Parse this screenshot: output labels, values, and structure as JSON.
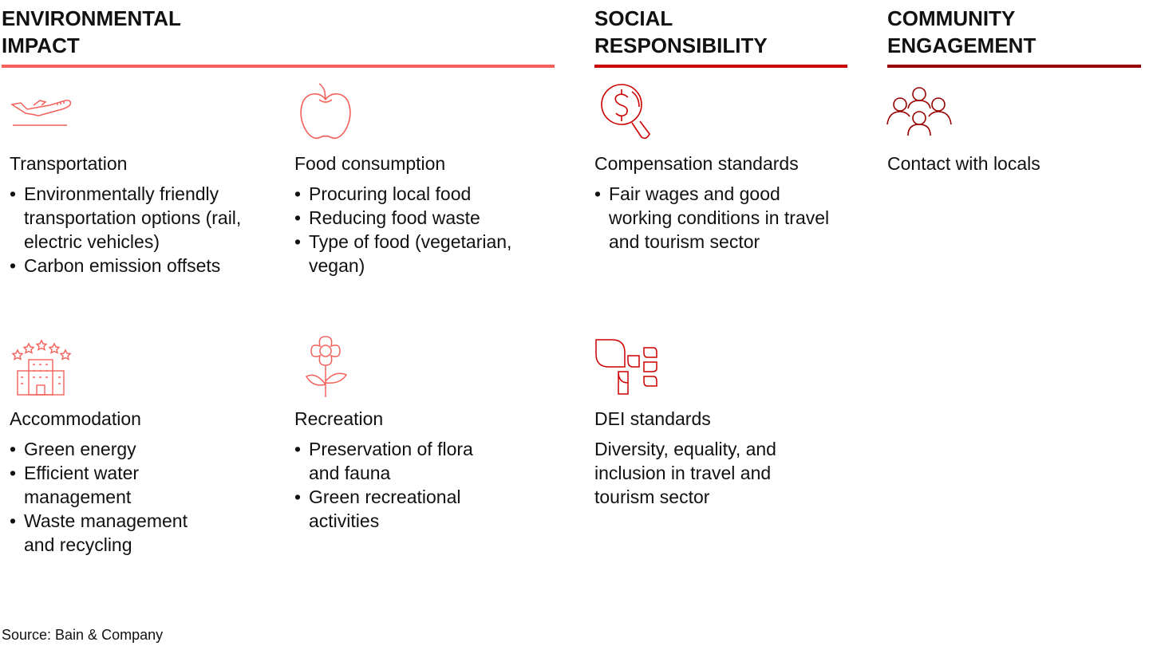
{
  "colors": {
    "environmental": "#F4605A",
    "social": "#CC0000",
    "community": "#990000"
  },
  "headers": {
    "environmental": "ENVIRONMENTAL IMPACT",
    "social": "SOCIAL RESPONSIBILITY",
    "community": "COMMUNITY ENGAGEMENT"
  },
  "env": {
    "transportation": {
      "icon": "airplane-icon",
      "title": "Transportation",
      "bullets": [
        "Environmentally friendly transportation options (rail, electric vehicles)",
        "Carbon emission offsets"
      ]
    },
    "food": {
      "icon": "apple-icon",
      "title": "Food consumption",
      "bullets": [
        "Procuring local food",
        "Reducing food waste",
        "Type of food (vegetarian, vegan)"
      ]
    },
    "accommodation": {
      "icon": "hotel-icon",
      "title": "Accommodation",
      "bullets": [
        "Green energy",
        "Efficient water management",
        "Waste management and recycling"
      ]
    },
    "recreation": {
      "icon": "flower-icon",
      "title": "Recreation",
      "bullets": [
        "Preservation of flora and fauna",
        "Green recreational activities"
      ]
    }
  },
  "social": {
    "compensation": {
      "icon": "dollar-magnifier-icon",
      "title": "Compensation standards",
      "bullets": [
        "Fair wages and good working conditions in travel and tourism sector"
      ]
    },
    "dei": {
      "icon": "leaves-icon",
      "title": "DEI standards",
      "text": "Diversity, equality, and inclusion in travel and tourism sector"
    }
  },
  "community": {
    "contact": {
      "icon": "people-icon",
      "title": "Contact with locals"
    }
  },
  "source": "Source: Bain & Company"
}
